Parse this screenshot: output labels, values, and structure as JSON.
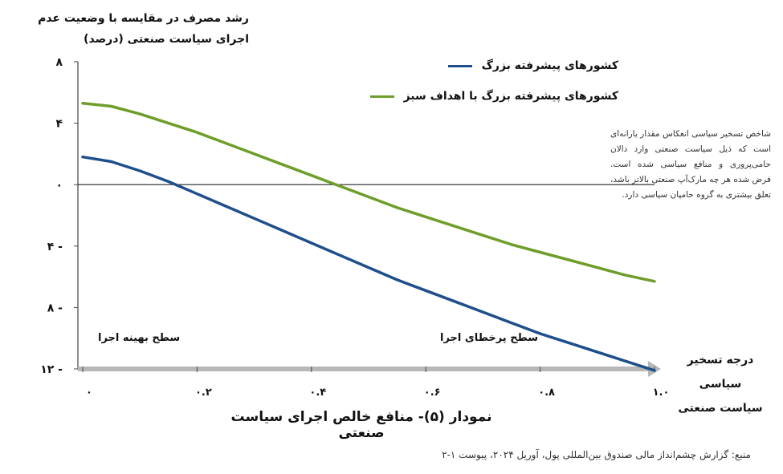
{
  "chart_data": {
    "type": "line",
    "title": "نمودار (۵)- منافع خالص اجرای سیاست صنعتی",
    "ylabel": "رشد مصرف در مقایسه با وضعیت عدم اجرای سیاست صنعتی (درصد)",
    "xlabel": "درجه تسخیر سیاسی سیاست صنعتی",
    "xlim": [
      0,
      1.0
    ],
    "ylim": [
      -12,
      8
    ],
    "xticks": [
      0,
      0.2,
      0.4,
      0.6,
      0.8,
      1.0
    ],
    "xtick_labels": [
      "۰",
      "۰.۲",
      "۰.۴",
      "۰.۶",
      "۰.۸",
      "۱.۰"
    ],
    "yticks": [
      8,
      4,
      0,
      -4,
      -8,
      -12
    ],
    "ytick_labels": [
      "۸",
      "۴",
      "۰",
      "۴ -",
      "۸ -",
      "۱۲ -"
    ],
    "legend_position": "top-right",
    "series": [
      {
        "name": "کشورهای پیشرفته بزرگ",
        "color": "#1f4e8c",
        "x": [
          0,
          0.05,
          0.1,
          0.15,
          0.2,
          0.25,
          0.3,
          0.35,
          0.4,
          0.45,
          0.5,
          0.55,
          0.6,
          0.65,
          0.7,
          0.75,
          0.8,
          0.85,
          0.9,
          0.95,
          1.0
        ],
        "y": [
          1.8,
          1.5,
          0.9,
          0.2,
          -0.6,
          -1.4,
          -2.2,
          -3.0,
          -3.8,
          -4.6,
          -5.4,
          -6.2,
          -6.9,
          -7.6,
          -8.3,
          -9.0,
          -9.7,
          -10.3,
          -10.9,
          -11.5,
          -12.1
        ]
      },
      {
        "name": "کشورهای پیشرفته بزرگ با اهداف سبز",
        "color": "#6e9e2a",
        "x": [
          0,
          0.05,
          0.1,
          0.15,
          0.2,
          0.25,
          0.3,
          0.35,
          0.4,
          0.45,
          0.5,
          0.55,
          0.6,
          0.65,
          0.7,
          0.75,
          0.8,
          0.85,
          0.9,
          0.95,
          1.0
        ],
        "y": [
          5.3,
          5.1,
          4.6,
          4.0,
          3.4,
          2.7,
          2.0,
          1.3,
          0.6,
          -0.1,
          -0.8,
          -1.5,
          -2.1,
          -2.7,
          -3.3,
          -3.9,
          -4.4,
          -4.9,
          -5.4,
          -5.9,
          -6.3
        ]
      }
    ],
    "annotations": [
      {
        "text": "سطح بهینه اجرا"
      },
      {
        "text": "سطح پرخطای اجرا"
      }
    ]
  },
  "note": "شاخص تسخیر سیاسی انعکاس مقدار یارانه‌ای است که ذیل سیاست صنعتی وارد دالان حامی‌پروری و منافع سیاسی شده است. فرض شده هر چه مارک‌آپ صنعتی بالاتر باشد، تعلق بیشتری به گروه حامیان سیاسی دارد.",
  "source": "منبع: گزارش چشم‌انداز مالی صندوق بین‌المللی پول، آوریل ۲۰۲۴، پیوست ۱-۲"
}
